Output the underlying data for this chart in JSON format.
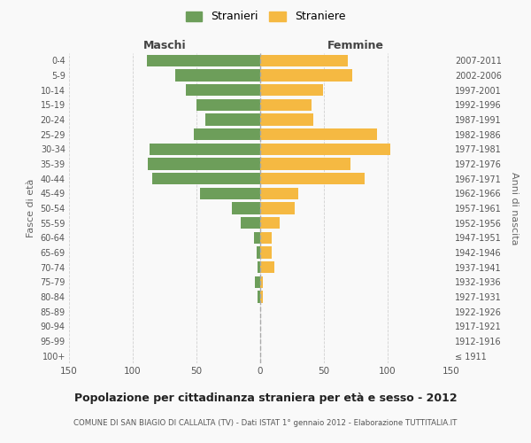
{
  "age_groups": [
    "100+",
    "95-99",
    "90-94",
    "85-89",
    "80-84",
    "75-79",
    "70-74",
    "65-69",
    "60-64",
    "55-59",
    "50-54",
    "45-49",
    "40-44",
    "35-39",
    "30-34",
    "25-29",
    "20-24",
    "15-19",
    "10-14",
    "5-9",
    "0-4"
  ],
  "birth_years": [
    "≤ 1911",
    "1912-1916",
    "1917-1921",
    "1922-1926",
    "1927-1931",
    "1932-1936",
    "1937-1941",
    "1942-1946",
    "1947-1951",
    "1952-1956",
    "1957-1961",
    "1962-1966",
    "1967-1971",
    "1972-1976",
    "1977-1981",
    "1982-1986",
    "1987-1991",
    "1992-1996",
    "1997-2001",
    "2002-2006",
    "2007-2011"
  ],
  "maschi": [
    0,
    0,
    0,
    0,
    2,
    4,
    2,
    3,
    5,
    15,
    22,
    47,
    85,
    88,
    87,
    52,
    43,
    50,
    58,
    67,
    89
  ],
  "femmine": [
    0,
    0,
    0,
    0,
    2,
    2,
    11,
    9,
    9,
    15,
    27,
    30,
    82,
    71,
    102,
    92,
    42,
    40,
    49,
    72,
    69
  ],
  "male_color": "#6d9e5a",
  "female_color": "#f5b942",
  "background_color": "#f9f9f9",
  "grid_color": "#cccccc",
  "title": "Popolazione per cittadinanza straniera per età e sesso - 2012",
  "subtitle": "COMUNE DI SAN BIAGIO DI CALLALTA (TV) - Dati ISTAT 1° gennaio 2012 - Elaborazione TUTTITALIA.IT",
  "xlabel_left": "Maschi",
  "xlabel_right": "Femmine",
  "ylabel": "Fasce di età",
  "ylabel_right": "Anni di nascita",
  "legend_male": "Stranieri",
  "legend_female": "Straniere",
  "xlim": 150
}
